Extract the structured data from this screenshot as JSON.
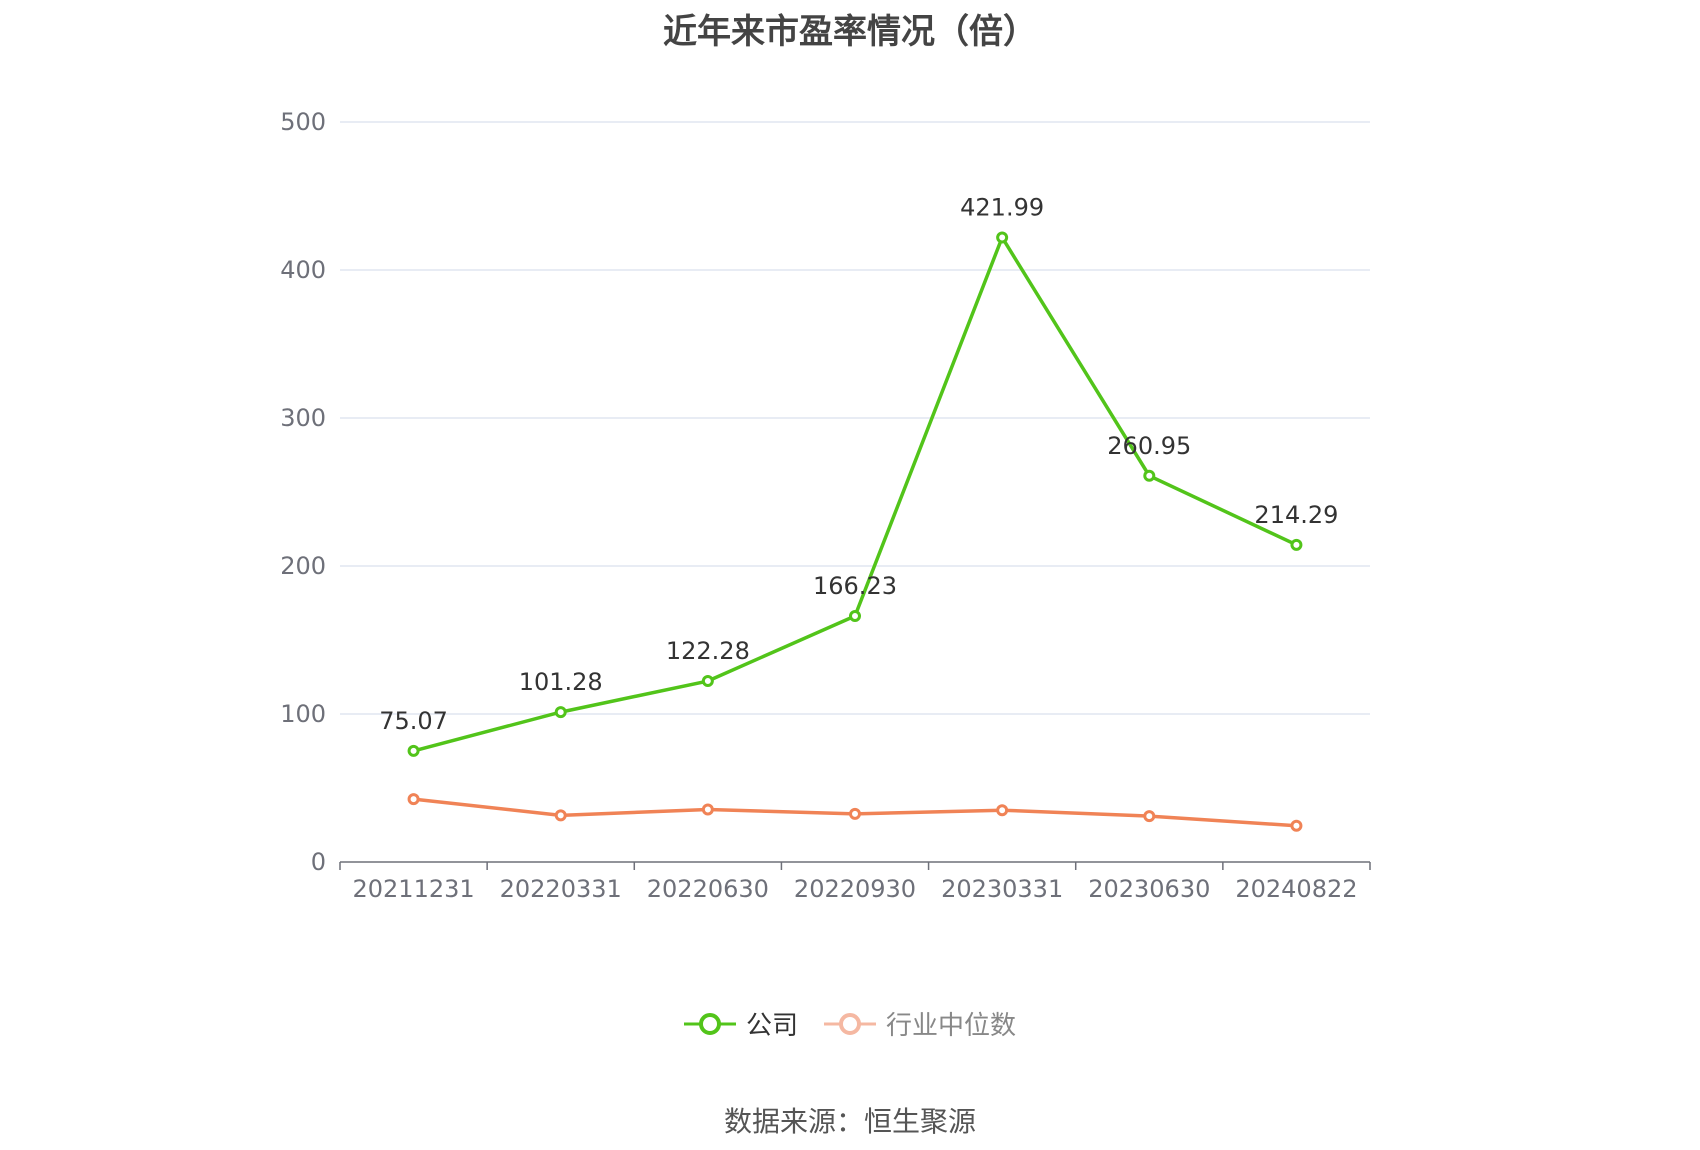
{
  "title": "近年来市盈率情况（倍）",
  "source": "数据来源：恒生聚源",
  "chart_data": {
    "type": "line",
    "title": "近年来市盈率情况（倍）",
    "categories": [
      "20211231",
      "20220331",
      "20220630",
      "20220930",
      "20230331",
      "20230630",
      "20240822"
    ],
    "ylim": [
      0,
      500
    ],
    "yticks": [
      0,
      100,
      200,
      300,
      400,
      500
    ],
    "grid": true,
    "legend_position": "bottom",
    "series": [
      {
        "name": "公司",
        "color": "#52c41a",
        "values": [
          75.07,
          101.28,
          122.28,
          166.23,
          421.99,
          260.95,
          214.29
        ],
        "labels": [
          "75.07",
          "101.28",
          "122.28",
          "166.23",
          "421.99",
          "260.95",
          "214.29"
        ]
      },
      {
        "name": "行业中位数",
        "color": "#f08356",
        "values": [
          42.5,
          31.5,
          35.5,
          32.5,
          35.0,
          31.0,
          24.5
        ]
      }
    ]
  },
  "legend": {
    "items": [
      {
        "label": "公司",
        "color": "#52c41a"
      },
      {
        "label": "行业中位数",
        "color": "#f5b8a2"
      }
    ]
  }
}
